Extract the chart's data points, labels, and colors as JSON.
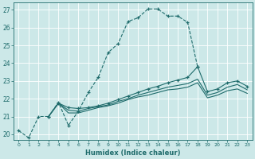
{
  "xlabel": "Humidex (Indice chaleur)",
  "xlim": [
    -0.5,
    23.5
  ],
  "ylim": [
    19.7,
    27.4
  ],
  "xticks": [
    0,
    1,
    2,
    3,
    4,
    5,
    6,
    7,
    8,
    9,
    10,
    11,
    12,
    13,
    14,
    15,
    16,
    17,
    18,
    19,
    20,
    21,
    22,
    23
  ],
  "yticks": [
    20,
    21,
    22,
    23,
    24,
    25,
    26,
    27
  ],
  "bg_color": "#cce8e8",
  "line_color": "#1e6b6b",
  "grid_color": "#ffffff",
  "lines": [
    {
      "x": [
        0,
        1,
        2,
        3,
        4,
        5,
        6,
        7,
        8,
        9,
        10,
        11,
        12,
        13,
        14,
        15,
        16,
        17,
        18
      ],
      "y": [
        20.2,
        19.8,
        21.0,
        21.0,
        21.8,
        20.5,
        21.3,
        22.35,
        23.2,
        24.6,
        25.1,
        26.35,
        26.55,
        27.05,
        27.05,
        26.65,
        26.65,
        26.3,
        23.8
      ],
      "linestyle": "--",
      "marker": "+"
    },
    {
      "x": [
        3,
        4,
        5,
        6,
        7,
        8,
        9,
        10,
        11,
        12,
        13,
        14,
        15,
        16,
        17,
        18,
        19,
        20,
        21,
        22,
        23
      ],
      "y": [
        21.0,
        21.75,
        21.5,
        21.45,
        21.5,
        21.6,
        21.75,
        21.95,
        22.15,
        22.35,
        22.55,
        22.7,
        22.9,
        23.05,
        23.2,
        23.8,
        22.4,
        22.55,
        22.9,
        23.0,
        22.7
      ],
      "linestyle": "-",
      "marker": "+"
    },
    {
      "x": [
        3,
        4,
        5,
        6,
        7,
        8,
        9,
        10,
        11,
        12,
        13,
        14,
        15,
        16,
        17,
        18,
        19,
        20,
        21,
        22,
        23
      ],
      "y": [
        21.0,
        21.75,
        21.35,
        21.3,
        21.45,
        21.55,
        21.65,
        21.85,
        22.0,
        22.2,
        22.35,
        22.5,
        22.65,
        22.75,
        22.85,
        23.1,
        22.2,
        22.35,
        22.65,
        22.8,
        22.5
      ],
      "linestyle": "-",
      "marker": null
    },
    {
      "x": [
        3,
        4,
        5,
        6,
        7,
        8,
        9,
        10,
        11,
        12,
        13,
        14,
        15,
        16,
        17,
        18,
        19,
        20,
        21,
        22,
        23
      ],
      "y": [
        21.0,
        21.75,
        21.2,
        21.2,
        21.35,
        21.5,
        21.6,
        21.75,
        21.95,
        22.1,
        22.2,
        22.35,
        22.5,
        22.55,
        22.65,
        22.9,
        22.05,
        22.2,
        22.45,
        22.55,
        22.3
      ],
      "linestyle": "-",
      "marker": null
    }
  ]
}
